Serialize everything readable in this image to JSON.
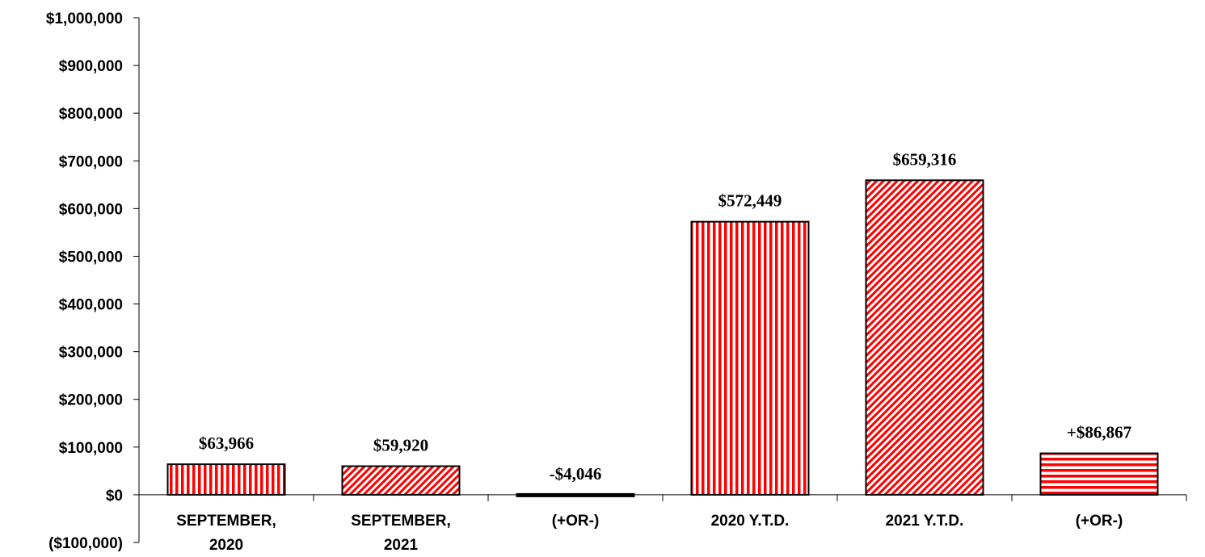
{
  "chart_data": {
    "type": "bar",
    "categories": [
      [
        "SEPTEMBER,",
        "2020"
      ],
      [
        "SEPTEMBER,",
        "2021"
      ],
      [
        "(+OR-)"
      ],
      [
        "2020 Y.T.D."
      ],
      [
        "2021 Y.T.D."
      ],
      [
        "(+OR-)"
      ]
    ],
    "values": [
      63966,
      59920,
      -4046,
      572449,
      659316,
      86867
    ],
    "data_labels": [
      "$63,966",
      "$59,920",
      "-$4,046",
      "$572,449",
      "$659,316",
      "+$86,867"
    ],
    "patterns": [
      "vertical-stripes",
      "diagonal-stripes",
      "solid-black",
      "vertical-stripes",
      "diagonal-stripes",
      "horizontal-stripes"
    ],
    "ylim": [
      -100000,
      1000000
    ],
    "yticks": [
      1000000,
      900000,
      800000,
      700000,
      600000,
      500000,
      400000,
      300000,
      200000,
      100000,
      0,
      -100000
    ],
    "ytick_labels": [
      "$1,000,000",
      "$900,000",
      "$800,000",
      "$700,000",
      "$600,000",
      "$500,000",
      "$400,000",
      "$300,000",
      "$200,000",
      "$100,000",
      "$0",
      "($100,000)"
    ],
    "title": "",
    "xlabel": "",
    "ylabel": "",
    "grid": false,
    "colors": {
      "bar": "#ff0000",
      "stripe_bg": "#ffffff",
      "outline": "#000000"
    }
  }
}
